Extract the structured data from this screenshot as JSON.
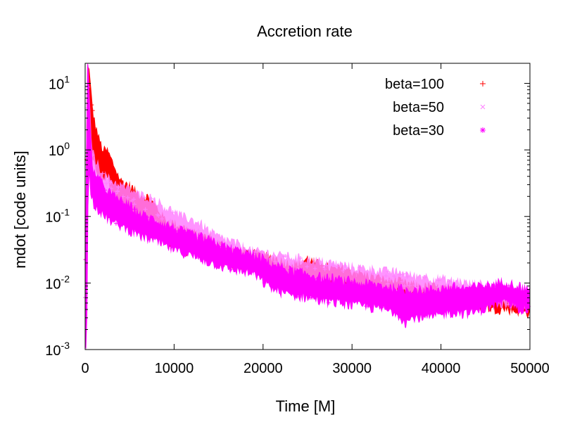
{
  "chart_data": {
    "type": "scatter",
    "title": "Accretion rate",
    "xlabel": "Time [M]",
    "ylabel": "mdot [code units]",
    "xlim": [
      0,
      50000
    ],
    "ylim": [
      0.001,
      20
    ],
    "yscale": "log",
    "x_ticks": [
      0,
      10000,
      20000,
      30000,
      40000,
      50000
    ],
    "x_tick_labels": [
      "0",
      "10000",
      "20000",
      "30000",
      "40000",
      "50000"
    ],
    "y_ticks": [
      {
        "value": 10,
        "base": "10",
        "exp": "1"
      },
      {
        "value": 1,
        "base": "10",
        "exp": "0"
      },
      {
        "value": 0.1,
        "base": "10",
        "exp": "-1"
      },
      {
        "value": 0.01,
        "base": "10",
        "exp": "-2"
      },
      {
        "value": 0.001,
        "base": "10",
        "exp": "-3"
      }
    ],
    "legend_position": "top-right",
    "series": [
      {
        "name": "beta=100",
        "color": "#ff0000",
        "marker": "+",
        "band": [
          [
            0,
            0.002,
            0.02
          ],
          [
            200,
            0.1,
            20
          ],
          [
            400,
            2,
            20
          ],
          [
            600,
            1.2,
            10
          ],
          [
            800,
            0.8,
            5
          ],
          [
            1000,
            0.6,
            3
          ],
          [
            1500,
            0.4,
            1.6
          ],
          [
            2000,
            0.35,
            1.0
          ],
          [
            2500,
            0.4,
            1.0
          ],
          [
            3000,
            0.25,
            0.7
          ],
          [
            4000,
            0.15,
            0.35
          ],
          [
            5000,
            0.12,
            0.3
          ],
          [
            6000,
            0.09,
            0.22
          ],
          [
            7000,
            0.08,
            0.2
          ],
          [
            8000,
            0.06,
            0.14
          ],
          [
            9000,
            0.04,
            0.09
          ],
          [
            10000,
            0.04,
            0.08
          ],
          [
            11000,
            0.03,
            0.07
          ],
          [
            12000,
            0.03,
            0.06
          ],
          [
            13000,
            0.03,
            0.05
          ],
          [
            14000,
            0.025,
            0.05
          ],
          [
            15000,
            0.02,
            0.04
          ],
          [
            16000,
            0.02,
            0.035
          ],
          [
            17000,
            0.018,
            0.03
          ],
          [
            18000,
            0.017,
            0.03
          ],
          [
            19000,
            0.016,
            0.028
          ],
          [
            20000,
            0.015,
            0.026
          ],
          [
            21000,
            0.014,
            0.025
          ],
          [
            22000,
            0.013,
            0.022
          ],
          [
            23000,
            0.012,
            0.02
          ],
          [
            24000,
            0.011,
            0.019
          ],
          [
            25000,
            0.012,
            0.024
          ],
          [
            26000,
            0.011,
            0.02
          ],
          [
            27000,
            0.01,
            0.018
          ],
          [
            28000,
            0.009,
            0.016
          ],
          [
            29000,
            0.009,
            0.017
          ],
          [
            30000,
            0.008,
            0.015
          ],
          [
            31000,
            0.008,
            0.014
          ],
          [
            32000,
            0.007,
            0.013
          ],
          [
            33000,
            0.007,
            0.012
          ],
          [
            34000,
            0.0065,
            0.011
          ],
          [
            35000,
            0.006,
            0.011
          ],
          [
            36000,
            0.0055,
            0.01
          ],
          [
            37000,
            0.0055,
            0.0095
          ],
          [
            38000,
            0.005,
            0.009
          ],
          [
            39000,
            0.005,
            0.009
          ],
          [
            40000,
            0.0048,
            0.0085
          ],
          [
            41000,
            0.0046,
            0.008
          ],
          [
            42000,
            0.0045,
            0.008
          ],
          [
            43000,
            0.0045,
            0.0078
          ],
          [
            44000,
            0.0042,
            0.0075
          ],
          [
            45000,
            0.0042,
            0.0075
          ],
          [
            46000,
            0.004,
            0.0072
          ],
          [
            47000,
            0.004,
            0.007
          ],
          [
            48000,
            0.0038,
            0.0068
          ],
          [
            49000,
            0.0036,
            0.0066
          ],
          [
            50000,
            0.0035,
            0.0065
          ]
        ]
      },
      {
        "name": "beta=50",
        "color": "#ff80ff",
        "marker": "x",
        "band": [
          [
            0,
            0.002,
            0.02
          ],
          [
            200,
            0.1,
            20
          ],
          [
            400,
            1.5,
            18
          ],
          [
            600,
            0.5,
            3
          ],
          [
            800,
            0.35,
            1.2
          ],
          [
            1000,
            0.3,
            0.8
          ],
          [
            2000,
            0.18,
            0.45
          ],
          [
            3000,
            0.15,
            0.35
          ],
          [
            4000,
            0.12,
            0.3
          ],
          [
            5000,
            0.1,
            0.26
          ],
          [
            6000,
            0.08,
            0.22
          ],
          [
            7000,
            0.07,
            0.2
          ],
          [
            8000,
            0.06,
            0.18
          ],
          [
            9000,
            0.05,
            0.14
          ],
          [
            10000,
            0.045,
            0.12
          ],
          [
            11000,
            0.04,
            0.1
          ],
          [
            12000,
            0.035,
            0.09
          ],
          [
            13000,
            0.03,
            0.08
          ],
          [
            14000,
            0.025,
            0.06
          ],
          [
            15000,
            0.022,
            0.05
          ],
          [
            16000,
            0.02,
            0.045
          ],
          [
            17000,
            0.018,
            0.04
          ],
          [
            18000,
            0.016,
            0.035
          ],
          [
            19000,
            0.015,
            0.03
          ],
          [
            20000,
            0.014,
            0.03
          ],
          [
            21000,
            0.013,
            0.028
          ],
          [
            22000,
            0.012,
            0.026
          ],
          [
            23000,
            0.012,
            0.025
          ],
          [
            24000,
            0.011,
            0.024
          ],
          [
            25000,
            0.011,
            0.023
          ],
          [
            26000,
            0.01,
            0.022
          ],
          [
            27000,
            0.01,
            0.021
          ],
          [
            28000,
            0.0095,
            0.02
          ],
          [
            29000,
            0.009,
            0.019
          ],
          [
            30000,
            0.009,
            0.018
          ],
          [
            31000,
            0.0085,
            0.017
          ],
          [
            32000,
            0.008,
            0.017
          ],
          [
            33000,
            0.008,
            0.016
          ],
          [
            34000,
            0.0075,
            0.015
          ],
          [
            35000,
            0.0075,
            0.015
          ],
          [
            36000,
            0.007,
            0.014
          ],
          [
            37000,
            0.007,
            0.013
          ],
          [
            38000,
            0.0065,
            0.013
          ],
          [
            39000,
            0.0065,
            0.012
          ],
          [
            40000,
            0.006,
            0.012
          ],
          [
            41000,
            0.006,
            0.011
          ],
          [
            42000,
            0.0055,
            0.011
          ],
          [
            43000,
            0.0055,
            0.01
          ],
          [
            44000,
            0.005,
            0.01
          ],
          [
            45000,
            0.005,
            0.0095
          ],
          [
            46000,
            0.0048,
            0.0092
          ],
          [
            47000,
            0.0046,
            0.009
          ],
          [
            48000,
            0.0044,
            0.0085
          ],
          [
            49000,
            0.0042,
            0.008
          ],
          [
            50000,
            0.004,
            0.0075
          ]
        ]
      },
      {
        "name": "beta=30",
        "color": "#ff00ff",
        "marker": "*",
        "band": [
          [
            0,
            0.001,
            0.02
          ],
          [
            200,
            0.001,
            20
          ],
          [
            400,
            0.5,
            16
          ],
          [
            600,
            0.25,
            2
          ],
          [
            800,
            0.18,
            0.7
          ],
          [
            1000,
            0.15,
            0.5
          ],
          [
            2000,
            0.1,
            0.3
          ],
          [
            3000,
            0.08,
            0.22
          ],
          [
            4000,
            0.07,
            0.18
          ],
          [
            5000,
            0.06,
            0.15
          ],
          [
            6000,
            0.05,
            0.12
          ],
          [
            7000,
            0.045,
            0.1
          ],
          [
            8000,
            0.04,
            0.09
          ],
          [
            9000,
            0.035,
            0.08
          ],
          [
            10000,
            0.03,
            0.07
          ],
          [
            11000,
            0.028,
            0.06
          ],
          [
            12000,
            0.025,
            0.055
          ],
          [
            13000,
            0.022,
            0.05
          ],
          [
            14000,
            0.02,
            0.045
          ],
          [
            15000,
            0.018,
            0.04
          ],
          [
            16000,
            0.016,
            0.035
          ],
          [
            17000,
            0.015,
            0.032
          ],
          [
            18000,
            0.014,
            0.03
          ],
          [
            19000,
            0.013,
            0.027
          ],
          [
            20000,
            0.01,
            0.024
          ],
          [
            21000,
            0.008,
            0.02
          ],
          [
            22000,
            0.007,
            0.018
          ],
          [
            23000,
            0.0065,
            0.016
          ],
          [
            24000,
            0.006,
            0.015
          ],
          [
            25000,
            0.006,
            0.014
          ],
          [
            26000,
            0.0055,
            0.013
          ],
          [
            27000,
            0.005,
            0.012
          ],
          [
            28000,
            0.005,
            0.012
          ],
          [
            29000,
            0.0048,
            0.011
          ],
          [
            30000,
            0.0045,
            0.011
          ],
          [
            31000,
            0.0045,
            0.01
          ],
          [
            32000,
            0.0042,
            0.01
          ],
          [
            33000,
            0.004,
            0.0095
          ],
          [
            34000,
            0.0038,
            0.009
          ],
          [
            35000,
            0.0035,
            0.0088
          ],
          [
            36000,
            0.0025,
            0.008
          ],
          [
            37000,
            0.003,
            0.0085
          ],
          [
            38000,
            0.0028,
            0.008
          ],
          [
            39000,
            0.003,
            0.0082
          ],
          [
            40000,
            0.0032,
            0.0085
          ],
          [
            41000,
            0.0035,
            0.009
          ],
          [
            42000,
            0.0035,
            0.0088
          ],
          [
            43000,
            0.0034,
            0.0086
          ],
          [
            44000,
            0.0036,
            0.009
          ],
          [
            45000,
            0.004,
            0.0095
          ],
          [
            46000,
            0.0045,
            0.01
          ],
          [
            47000,
            0.005,
            0.011
          ],
          [
            48000,
            0.0045,
            0.01
          ],
          [
            49000,
            0.004,
            0.009
          ],
          [
            50000,
            0.0038,
            0.0085
          ]
        ]
      }
    ]
  }
}
